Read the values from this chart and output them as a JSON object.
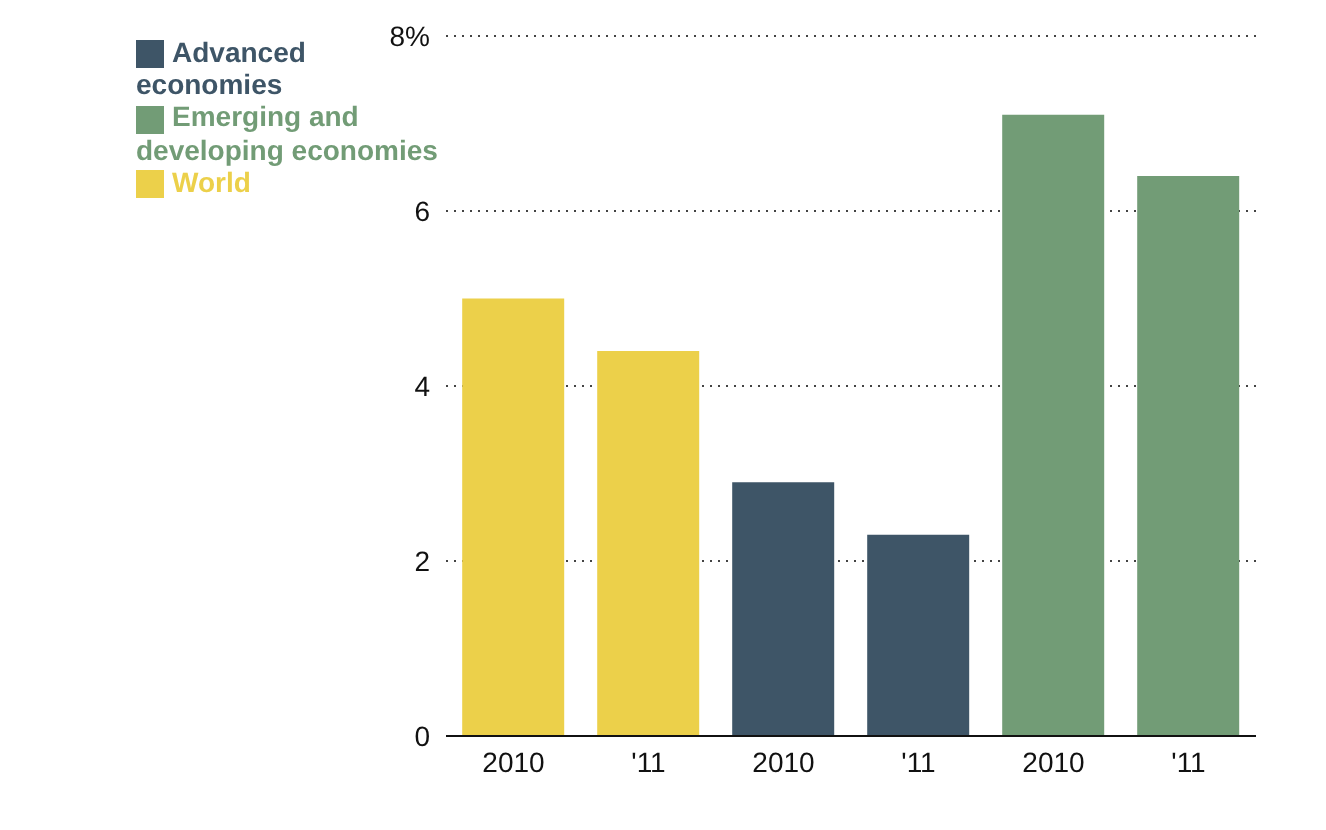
{
  "chart_data": {
    "type": "bar",
    "categories": [
      "2010",
      "'11",
      "2010",
      "'11",
      "2010",
      "'11"
    ],
    "series": [
      {
        "name": "World",
        "color": "#ecd04a",
        "values": [
          5.0,
          4.4,
          null,
          null,
          null,
          null
        ]
      },
      {
        "name": "Advanced economies",
        "color": "#3e5567",
        "values": [
          null,
          null,
          2.9,
          2.3,
          null,
          null
        ]
      },
      {
        "name": "Emerging and developing economies",
        "color": "#729c76",
        "values": [
          null,
          null,
          null,
          null,
          7.1,
          6.4
        ]
      }
    ],
    "ylim": [
      0,
      8
    ],
    "yticks": [
      0,
      2,
      4,
      6,
      {
        "value": 8,
        "label": "8%"
      }
    ],
    "grid": "y",
    "legend": "top left"
  }
}
